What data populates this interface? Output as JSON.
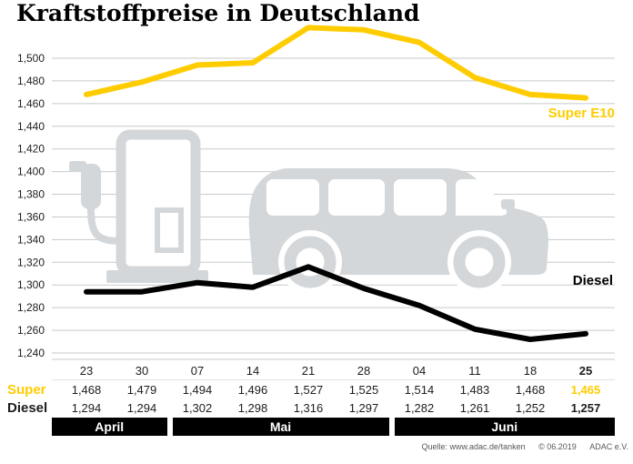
{
  "title": "Kraftstoffpreise in Deutschland",
  "chart_data": {
    "type": "line",
    "x": [
      "23",
      "30",
      "07",
      "14",
      "21",
      "28",
      "04",
      "11",
      "18",
      "25"
    ],
    "xlabel": "",
    "ylabel": "",
    "ylim": [
      1.24,
      1.5
    ],
    "ytick_step": 0.02,
    "ytick_labels": [
      "1,500",
      "1,480",
      "1,460",
      "1,440",
      "1,420",
      "1,400",
      "1,380",
      "1,360",
      "1,340",
      "1,320",
      "1,300",
      "1,280",
      "1,260",
      "1,240"
    ],
    "grid": true,
    "legend_position": "inline-right",
    "series": [
      {
        "name": "Super E10",
        "color": "#ffcc00",
        "values": [
          1.468,
          1.479,
          1.494,
          1.496,
          1.527,
          1.525,
          1.514,
          1.483,
          1.468,
          1.465
        ]
      },
      {
        "name": "Diesel",
        "color": "#000000",
        "values": [
          1.294,
          1.294,
          1.302,
          1.298,
          1.316,
          1.297,
          1.282,
          1.261,
          1.252,
          1.257
        ]
      }
    ],
    "months": [
      {
        "label": "April",
        "span": [
          0,
          1
        ]
      },
      {
        "label": "Mai",
        "span": [
          2,
          5
        ]
      },
      {
        "label": "Juni",
        "span": [
          6,
          9
        ]
      }
    ]
  },
  "table": {
    "rows": [
      {
        "label": "Super",
        "values": [
          "1,468",
          "1,479",
          "1,494",
          "1,496",
          "1,527",
          "1,525",
          "1,514",
          "1,483",
          "1,468",
          "1,465"
        ]
      },
      {
        "label": "Diesel",
        "values": [
          "1,294",
          "1,294",
          "1,302",
          "1,298",
          "1,316",
          "1,297",
          "1,282",
          "1,261",
          "1,252",
          "1,257"
        ]
      }
    ]
  },
  "footer": {
    "source": "Quelle: www.adac.de/tanken",
    "copyright": "© 06.2019",
    "org": "ADAC e.V."
  },
  "colors": {
    "accent": "#ffcc00",
    "graphic_gray": "#d4d7d9",
    "grid": "#c8cacb"
  },
  "icons": [
    "fuel-pump-icon",
    "car-icon"
  ]
}
